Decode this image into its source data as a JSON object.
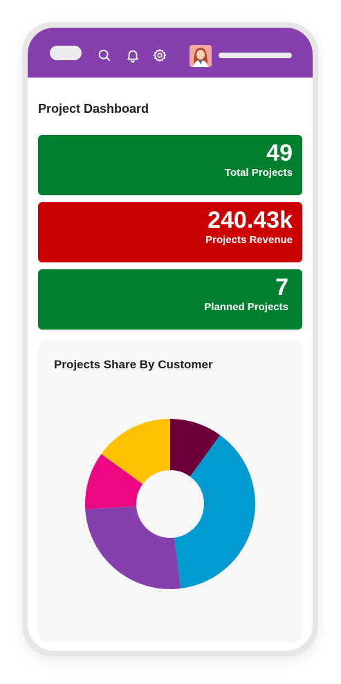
{
  "dashboard": {
    "title": "Project Dashboard",
    "kpis": [
      {
        "value": "49",
        "label": "Total Projects",
        "color": "#00802f"
      },
      {
        "value": "240.43k",
        "label": "Projects Revenue",
        "color": "#cc0000"
      },
      {
        "value": "7",
        "label": "Planned Projects",
        "color": "#00802f"
      }
    ]
  },
  "header": {
    "icons": [
      "search-icon",
      "bell-icon",
      "gear-icon"
    ],
    "accent": "#8540ad"
  },
  "chart_data": {
    "type": "pie",
    "title": "Projects Share By Customer",
    "donut": true,
    "values": [
      10,
      38,
      26,
      11,
      15
    ],
    "colors": [
      "#6d0039",
      "#009bd0",
      "#8540ad",
      "#ec0882",
      "#ffc000"
    ]
  }
}
